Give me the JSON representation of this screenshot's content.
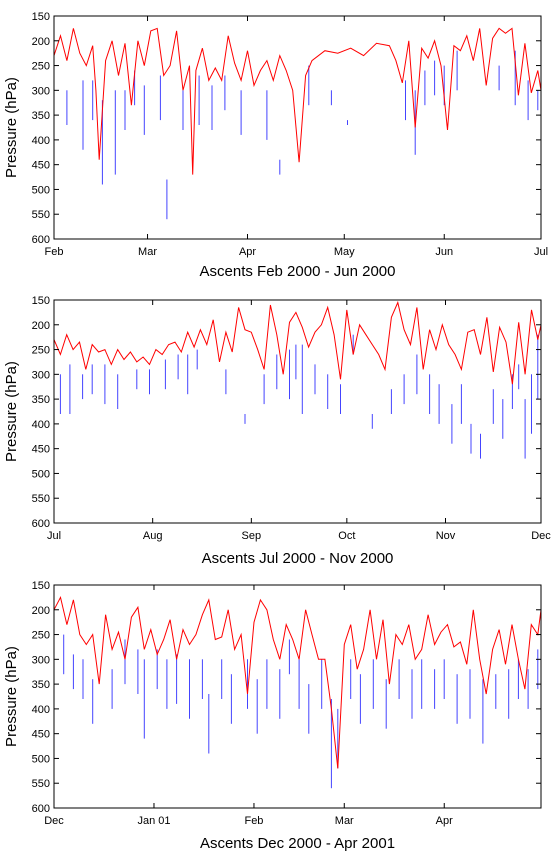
{
  "chart_data": [
    {
      "type": "line",
      "xlabel": "Ascents Feb 2000 - Jun 2000",
      "ylabel": "Pressure (hPa)",
      "y_inverted": true,
      "ylim": [
        600,
        150
      ],
      "yticks": [
        150,
        200,
        250,
        300,
        350,
        400,
        450,
        500,
        550,
        600
      ],
      "xticks": [
        {
          "label": "Feb",
          "day": 0
        },
        {
          "label": "Mar",
          "day": 29
        },
        {
          "label": "Apr",
          "day": 60
        },
        {
          "label": "May",
          "day": 90
        },
        {
          "label": "Jun",
          "day": 121
        },
        {
          "label": "Jul",
          "day": 151
        }
      ],
      "xlim_days": [
        0,
        151
      ],
      "colors": {
        "line": "#ff0000",
        "bars": "#4444ff"
      },
      "line_x": [
        0,
        2,
        4,
        6,
        8,
        10,
        12,
        13,
        14,
        16,
        18,
        20,
        22,
        24,
        26,
        28,
        30,
        32,
        34,
        36,
        38,
        40,
        42,
        43,
        44,
        46,
        48,
        50,
        52,
        54,
        56,
        58,
        60,
        62,
        64,
        66,
        68,
        70,
        72,
        74,
        76,
        78,
        80,
        84,
        88,
        92,
        96,
        100,
        104,
        106,
        108,
        110,
        112,
        114,
        116,
        118,
        120,
        122,
        124,
        126,
        128,
        130,
        132,
        134,
        136,
        138,
        140,
        142,
        144,
        146,
        148,
        150,
        151
      ],
      "line_y": [
        230,
        190,
        240,
        175,
        225,
        250,
        210,
        300,
        440,
        240,
        200,
        270,
        205,
        330,
        200,
        250,
        180,
        175,
        270,
        250,
        180,
        300,
        250,
        470,
        260,
        215,
        280,
        255,
        280,
        190,
        245,
        280,
        220,
        290,
        260,
        240,
        280,
        230,
        260,
        300,
        445,
        270,
        240,
        220,
        225,
        215,
        230,
        205,
        210,
        240,
        285,
        200,
        375,
        215,
        235,
        200,
        250,
        380,
        210,
        220,
        190,
        240,
        175,
        290,
        195,
        175,
        185,
        175,
        310,
        205,
        305,
        260,
        300
      ],
      "bars": [
        {
          "x": 4,
          "top": 300,
          "bottom": 370
        },
        {
          "x": 9,
          "top": 280,
          "bottom": 420
        },
        {
          "x": 12,
          "top": 280,
          "bottom": 360
        },
        {
          "x": 15,
          "top": 320,
          "bottom": 490
        },
        {
          "x": 19,
          "top": 300,
          "bottom": 470
        },
        {
          "x": 22,
          "top": 300,
          "bottom": 380
        },
        {
          "x": 25,
          "top": 260,
          "bottom": 330
        },
        {
          "x": 28,
          "top": 290,
          "bottom": 390
        },
        {
          "x": 33,
          "top": 270,
          "bottom": 360
        },
        {
          "x": 35,
          "top": 480,
          "bottom": 560
        },
        {
          "x": 40,
          "top": 300,
          "bottom": 380
        },
        {
          "x": 45,
          "top": 270,
          "bottom": 370
        },
        {
          "x": 49,
          "top": 290,
          "bottom": 380
        },
        {
          "x": 53,
          "top": 270,
          "bottom": 340
        },
        {
          "x": 58,
          "top": 300,
          "bottom": 390
        },
        {
          "x": 66,
          "top": 300,
          "bottom": 400
        },
        {
          "x": 70,
          "top": 440,
          "bottom": 470
        },
        {
          "x": 79,
          "top": 250,
          "bottom": 330
        },
        {
          "x": 86,
          "top": 300,
          "bottom": 330
        },
        {
          "x": 91,
          "top": 360,
          "bottom": 370
        },
        {
          "x": 109,
          "top": 280,
          "bottom": 360
        },
        {
          "x": 112,
          "top": 300,
          "bottom": 430
        },
        {
          "x": 115,
          "top": 260,
          "bottom": 330
        },
        {
          "x": 118,
          "top": 240,
          "bottom": 310
        },
        {
          "x": 121,
          "top": 250,
          "bottom": 330
        },
        {
          "x": 125,
          "top": 220,
          "bottom": 300
        },
        {
          "x": 138,
          "top": 250,
          "bottom": 300
        },
        {
          "x": 143,
          "top": 220,
          "bottom": 330
        },
        {
          "x": 147,
          "top": 280,
          "bottom": 360
        },
        {
          "x": 150,
          "top": 300,
          "bottom": 340
        }
      ]
    },
    {
      "type": "line",
      "xlabel": "Ascents Jul 2000 - Nov 2000",
      "ylabel": "Pressure (hPa)",
      "y_inverted": true,
      "ylim": [
        600,
        150
      ],
      "yticks": [
        150,
        200,
        250,
        300,
        350,
        400,
        450,
        500,
        550,
        600
      ],
      "xticks": [
        {
          "label": "Jul",
          "day": 0
        },
        {
          "label": "Aug",
          "day": 31
        },
        {
          "label": "Sep",
          "day": 62
        },
        {
          "label": "Oct",
          "day": 92
        },
        {
          "label": "Nov",
          "day": 123
        },
        {
          "label": "Dec",
          "day": 153
        }
      ],
      "xlim_days": [
        0,
        153
      ],
      "colors": {
        "line": "#ff0000",
        "bars": "#4444ff"
      },
      "line_x": [
        0,
        2,
        4,
        6,
        8,
        10,
        12,
        14,
        16,
        18,
        20,
        22,
        24,
        26,
        28,
        30,
        32,
        34,
        36,
        38,
        40,
        42,
        44,
        46,
        48,
        50,
        52,
        54,
        56,
        58,
        60,
        62,
        64,
        66,
        68,
        70,
        72,
        74,
        76,
        78,
        80,
        82,
        84,
        86,
        88,
        90,
        92,
        94,
        96,
        98,
        100,
        102,
        104,
        106,
        108,
        110,
        112,
        114,
        116,
        118,
        120,
        122,
        124,
        126,
        128,
        130,
        132,
        134,
        136,
        138,
        140,
        142,
        144,
        146,
        148,
        150,
        152,
        153
      ],
      "line_y": [
        230,
        260,
        220,
        250,
        235,
        290,
        240,
        255,
        250,
        280,
        250,
        270,
        255,
        275,
        265,
        280,
        250,
        260,
        240,
        235,
        255,
        215,
        245,
        210,
        240,
        190,
        275,
        215,
        255,
        165,
        210,
        215,
        250,
        290,
        160,
        220,
        300,
        195,
        175,
        205,
        245,
        215,
        200,
        165,
        220,
        310,
        170,
        260,
        200,
        220,
        240,
        260,
        290,
        185,
        155,
        210,
        240,
        165,
        290,
        210,
        250,
        200,
        240,
        260,
        290,
        215,
        210,
        260,
        185,
        295,
        205,
        235,
        320,
        195,
        300,
        170,
        230,
        200
      ],
      "bars": [
        {
          "x": 2,
          "top": 300,
          "bottom": 380
        },
        {
          "x": 5,
          "top": 280,
          "bottom": 380
        },
        {
          "x": 9,
          "top": 300,
          "bottom": 350
        },
        {
          "x": 12,
          "top": 280,
          "bottom": 340
        },
        {
          "x": 16,
          "top": 280,
          "bottom": 360
        },
        {
          "x": 20,
          "top": 300,
          "bottom": 370
        },
        {
          "x": 26,
          "top": 290,
          "bottom": 330
        },
        {
          "x": 30,
          "top": 290,
          "bottom": 340
        },
        {
          "x": 35,
          "top": 270,
          "bottom": 330
        },
        {
          "x": 39,
          "top": 260,
          "bottom": 310
        },
        {
          "x": 42,
          "top": 260,
          "bottom": 340
        },
        {
          "x": 45,
          "top": 250,
          "bottom": 290
        },
        {
          "x": 54,
          "top": 290,
          "bottom": 340
        },
        {
          "x": 60,
          "top": 380,
          "bottom": 400
        },
        {
          "x": 66,
          "top": 300,
          "bottom": 360
        },
        {
          "x": 70,
          "top": 260,
          "bottom": 330
        },
        {
          "x": 74,
          "top": 250,
          "bottom": 350
        },
        {
          "x": 76,
          "top": 240,
          "bottom": 310
        },
        {
          "x": 78,
          "top": 240,
          "bottom": 380
        },
        {
          "x": 82,
          "top": 280,
          "bottom": 340
        },
        {
          "x": 86,
          "top": 300,
          "bottom": 370
        },
        {
          "x": 90,
          "top": 320,
          "bottom": 380
        },
        {
          "x": 94,
          "top": 220,
          "bottom": 260
        },
        {
          "x": 100,
          "top": 380,
          "bottom": 410
        },
        {
          "x": 106,
          "top": 330,
          "bottom": 380
        },
        {
          "x": 110,
          "top": 300,
          "bottom": 360
        },
        {
          "x": 114,
          "top": 260,
          "bottom": 340
        },
        {
          "x": 118,
          "top": 300,
          "bottom": 380
        },
        {
          "x": 121,
          "top": 320,
          "bottom": 400
        },
        {
          "x": 125,
          "top": 360,
          "bottom": 440
        },
        {
          "x": 128,
          "top": 320,
          "bottom": 400
        },
        {
          "x": 131,
          "top": 400,
          "bottom": 460
        },
        {
          "x": 134,
          "top": 420,
          "bottom": 470
        },
        {
          "x": 138,
          "top": 330,
          "bottom": 400
        },
        {
          "x": 141,
          "top": 350,
          "bottom": 430
        },
        {
          "x": 144,
          "top": 300,
          "bottom": 370
        },
        {
          "x": 146,
          "top": 280,
          "bottom": 330
        },
        {
          "x": 148,
          "top": 350,
          "bottom": 470
        },
        {
          "x": 150,
          "top": 300,
          "bottom": 420
        },
        {
          "x": 152,
          "top": 220,
          "bottom": 350
        }
      ]
    },
    {
      "type": "line",
      "xlabel": "Ascents Dec 2000 - Apr 2001",
      "ylabel": "Pressure (hPa)",
      "y_inverted": true,
      "ylim": [
        600,
        150
      ],
      "yticks": [
        150,
        200,
        250,
        300,
        350,
        400,
        450,
        500,
        550,
        600
      ],
      "xticks": [
        {
          "label": "Dec",
          "day": 0
        },
        {
          "label": "Jan 01",
          "day": 31
        },
        {
          "label": "Feb",
          "day": 62
        },
        {
          "label": "Mar",
          "day": 90
        },
        {
          "label": "Apr",
          "day": 121
        }
      ],
      "xlim_days": [
        0,
        151
      ],
      "colors": {
        "line": "#ff0000",
        "bars": "#4444ff"
      },
      "line_x": [
        0,
        2,
        4,
        6,
        8,
        10,
        12,
        14,
        16,
        18,
        20,
        22,
        24,
        26,
        28,
        30,
        32,
        34,
        36,
        38,
        40,
        42,
        44,
        46,
        48,
        50,
        52,
        54,
        56,
        58,
        60,
        62,
        64,
        66,
        68,
        70,
        72,
        74,
        76,
        78,
        80,
        82,
        84,
        86,
        88,
        90,
        92,
        94,
        96,
        98,
        100,
        102,
        104,
        106,
        108,
        110,
        112,
        114,
        116,
        118,
        120,
        122,
        124,
        126,
        128,
        130,
        132,
        134,
        136,
        138,
        140,
        142,
        144,
        146,
        148,
        150,
        151
      ],
      "line_y": [
        200,
        175,
        230,
        180,
        250,
        270,
        250,
        350,
        210,
        280,
        245,
        300,
        215,
        195,
        280,
        240,
        290,
        260,
        220,
        300,
        240,
        270,
        250,
        210,
        180,
        260,
        255,
        200,
        280,
        250,
        370,
        225,
        180,
        200,
        260,
        300,
        230,
        260,
        300,
        200,
        250,
        300,
        300,
        400,
        520,
        270,
        230,
        320,
        280,
        200,
        300,
        220,
        350,
        250,
        270,
        230,
        300,
        280,
        210,
        270,
        245,
        230,
        275,
        265,
        310,
        200,
        300,
        370,
        280,
        240,
        310,
        230,
        300,
        360,
        230,
        250,
        200
      ],
      "bars": [
        {
          "x": 3,
          "top": 250,
          "bottom": 330
        },
        {
          "x": 6,
          "top": 290,
          "bottom": 360
        },
        {
          "x": 9,
          "top": 300,
          "bottom": 380
        },
        {
          "x": 12,
          "top": 340,
          "bottom": 430
        },
        {
          "x": 18,
          "top": 320,
          "bottom": 400
        },
        {
          "x": 22,
          "top": 260,
          "bottom": 350
        },
        {
          "x": 26,
          "top": 280,
          "bottom": 370
        },
        {
          "x": 28,
          "top": 300,
          "bottom": 460
        },
        {
          "x": 32,
          "top": 280,
          "bottom": 360
        },
        {
          "x": 35,
          "top": 300,
          "bottom": 400
        },
        {
          "x": 38,
          "top": 290,
          "bottom": 390
        },
        {
          "x": 42,
          "top": 300,
          "bottom": 420
        },
        {
          "x": 46,
          "top": 300,
          "bottom": 380
        },
        {
          "x": 48,
          "top": 370,
          "bottom": 490
        },
        {
          "x": 52,
          "top": 300,
          "bottom": 380
        },
        {
          "x": 55,
          "top": 330,
          "bottom": 430
        },
        {
          "x": 60,
          "top": 300,
          "bottom": 400
        },
        {
          "x": 63,
          "top": 340,
          "bottom": 450
        },
        {
          "x": 66,
          "top": 300,
          "bottom": 400
        },
        {
          "x": 70,
          "top": 320,
          "bottom": 420
        },
        {
          "x": 73,
          "top": 260,
          "bottom": 330
        },
        {
          "x": 76,
          "top": 300,
          "bottom": 400
        },
        {
          "x": 79,
          "top": 350,
          "bottom": 450
        },
        {
          "x": 83,
          "top": 300,
          "bottom": 400
        },
        {
          "x": 86,
          "top": 380,
          "bottom": 560
        },
        {
          "x": 88,
          "top": 400,
          "bottom": 520
        },
        {
          "x": 92,
          "top": 300,
          "bottom": 380
        },
        {
          "x": 95,
          "top": 330,
          "bottom": 430
        },
        {
          "x": 99,
          "top": 300,
          "bottom": 400
        },
        {
          "x": 103,
          "top": 340,
          "bottom": 440
        },
        {
          "x": 107,
          "top": 300,
          "bottom": 380
        },
        {
          "x": 111,
          "top": 320,
          "bottom": 420
        },
        {
          "x": 114,
          "top": 300,
          "bottom": 400
        },
        {
          "x": 118,
          "top": 320,
          "bottom": 400
        },
        {
          "x": 121,
          "top": 300,
          "bottom": 380
        },
        {
          "x": 125,
          "top": 330,
          "bottom": 430
        },
        {
          "x": 129,
          "top": 320,
          "bottom": 420
        },
        {
          "x": 133,
          "top": 340,
          "bottom": 470
        },
        {
          "x": 137,
          "top": 330,
          "bottom": 400
        },
        {
          "x": 141,
          "top": 320,
          "bottom": 420
        },
        {
          "x": 144,
          "top": 300,
          "bottom": 380
        },
        {
          "x": 147,
          "top": 320,
          "bottom": 400
        },
        {
          "x": 150,
          "top": 280,
          "bottom": 360
        }
      ]
    }
  ]
}
